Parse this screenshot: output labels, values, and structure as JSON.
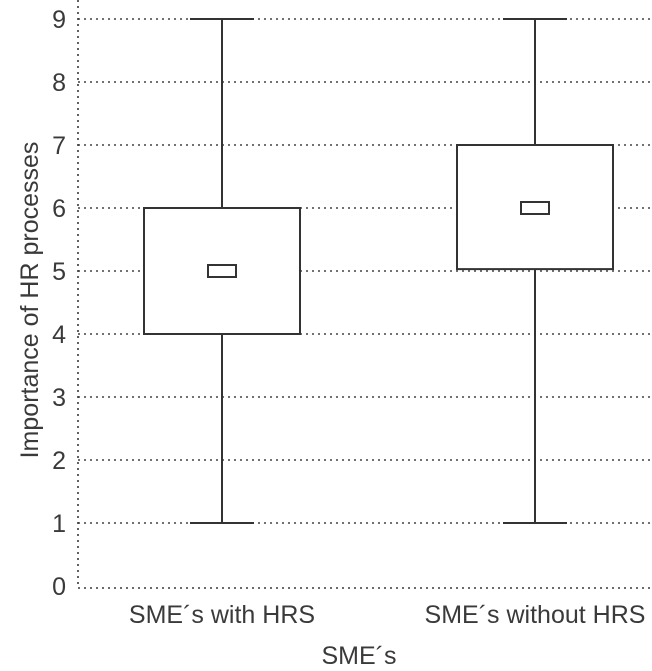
{
  "chart_data": {
    "type": "boxplot",
    "title": "",
    "xlabel": "SME´s",
    "ylabel": "Importance of HR processes",
    "ylim": [
      0,
      9
    ],
    "yticks": [
      "0",
      "1",
      "2",
      "3",
      "4",
      "5",
      "6",
      "7",
      "8",
      "9"
    ],
    "grid": true,
    "categories": [
      "SME´s with HRS",
      "SME´s without HRS"
    ],
    "boxes": [
      {
        "category": "SME´s with HRS",
        "min": 1,
        "q1": 4,
        "median": 5,
        "q3": 6,
        "max": 9
      },
      {
        "category": "SME´s without HRS",
        "min": 1,
        "q1": 5.03,
        "median": 6,
        "q3": 7,
        "max": 9
      }
    ]
  }
}
